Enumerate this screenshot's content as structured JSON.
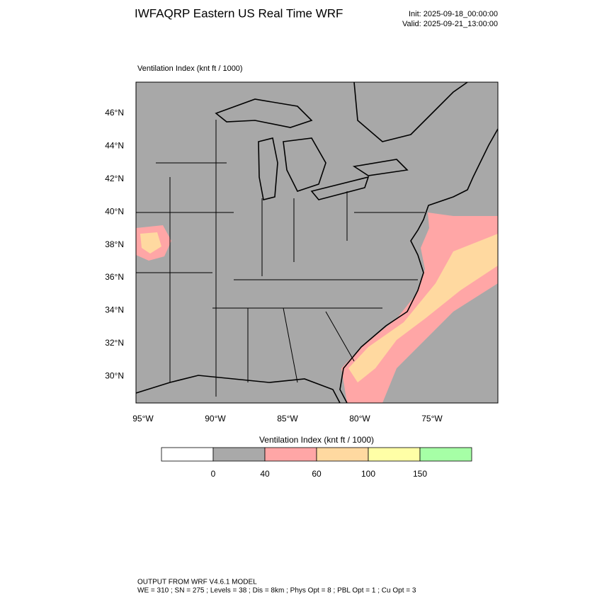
{
  "header": {
    "title": "IWFAQRP Eastern US Real Time WRF",
    "init": "Init: 2025-09-18_00:00:00",
    "valid": "Valid: 2025-09-21_13:00:00"
  },
  "map": {
    "label": "Ventilation Index   (knt ft / 1000)",
    "lat_labels": [
      "46°N",
      "44°N",
      "42°N",
      "40°N",
      "38°N",
      "36°N",
      "34°N",
      "32°N",
      "30°N"
    ],
    "lon_labels": [
      "95°W",
      "90°W",
      "85°W",
      "80°W",
      "75°W"
    ]
  },
  "colorbar": {
    "title": "Ventilation Index  (knt ft / 1000)",
    "colors": [
      "#ffffff",
      "#a9a9a9",
      "#ffa6a6",
      "#ffd9a0",
      "#ffffa6",
      "#a6ffa6"
    ],
    "ticks": [
      "0",
      "40",
      "60",
      "100",
      "150"
    ]
  },
  "footer": {
    "line1": "OUTPUT FROM WRF V4.6.1 MODEL",
    "line2": "WE = 310 ; SN = 275 ; Levels = 38 ; Dis = 8km ; Phys Opt = 8 ; PBL Opt = 1 ; Cu Opt = 3"
  }
}
